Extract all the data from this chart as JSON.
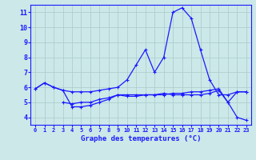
{
  "hours": [
    0,
    1,
    2,
    3,
    4,
    5,
    6,
    7,
    8,
    9,
    10,
    11,
    12,
    13,
    14,
    15,
    16,
    17,
    18,
    19,
    20,
    21,
    22,
    23
  ],
  "temp1": [
    5.9,
    6.3,
    6.0,
    5.8,
    4.7,
    4.7,
    4.8,
    5.0,
    5.2,
    5.5,
    5.5,
    5.5,
    5.5,
    5.5,
    5.6,
    5.5,
    5.5,
    5.5,
    5.5,
    5.6,
    5.8,
    5.0,
    4.0,
    3.8
  ],
  "temp2": [
    5.9,
    6.3,
    6.0,
    5.8,
    5.7,
    5.7,
    5.7,
    5.8,
    5.9,
    6.0,
    6.5,
    7.5,
    8.5,
    7.0,
    8.0,
    11.0,
    11.3,
    10.6,
    8.5,
    6.5,
    5.5,
    5.5,
    5.7,
    5.7
  ],
  "temp3": [
    null,
    null,
    null,
    5.0,
    4.9,
    5.0,
    5.0,
    5.2,
    5.3,
    5.5,
    5.4,
    5.4,
    5.5,
    5.5,
    5.5,
    5.6,
    5.6,
    5.7,
    5.7,
    5.8,
    5.9,
    5.0,
    5.7,
    5.7
  ],
  "line_color": "#1a1aff",
  "bg_color": "#cce8e8",
  "grid_color": "#aacaca",
  "xlabel": "Graphe des temperatures (°C)",
  "ylim": [
    3.5,
    11.5
  ],
  "yticks": [
    4,
    5,
    6,
    7,
    8,
    9,
    10,
    11
  ],
  "xlim": [
    -0.5,
    23.5
  ]
}
